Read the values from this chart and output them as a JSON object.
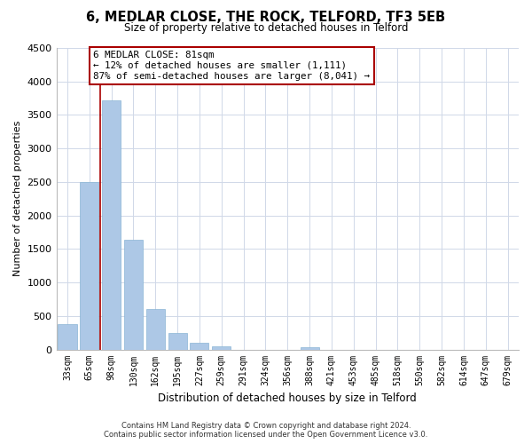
{
  "title": "6, MEDLAR CLOSE, THE ROCK, TELFORD, TF3 5EB",
  "subtitle": "Size of property relative to detached houses in Telford",
  "xlabel": "Distribution of detached houses by size in Telford",
  "ylabel": "Number of detached properties",
  "categories": [
    "33sqm",
    "65sqm",
    "98sqm",
    "130sqm",
    "162sqm",
    "195sqm",
    "227sqm",
    "259sqm",
    "291sqm",
    "324sqm",
    "356sqm",
    "388sqm",
    "421sqm",
    "453sqm",
    "485sqm",
    "518sqm",
    "550sqm",
    "582sqm",
    "614sqm",
    "647sqm",
    "679sqm"
  ],
  "values": [
    380,
    2500,
    3720,
    1640,
    600,
    240,
    105,
    50,
    0,
    0,
    0,
    40,
    0,
    0,
    0,
    0,
    0,
    0,
    0,
    0,
    0
  ],
  "bar_color": "#adc8e6",
  "red_line_x": 1.5,
  "annotation_title": "6 MEDLAR CLOSE: 81sqm",
  "annotation_line1": "← 12% of detached houses are smaller (1,111)",
  "annotation_line2": "87% of semi-detached houses are larger (8,041) →",
  "box_color": "#aa0000",
  "ylim": [
    0,
    4500
  ],
  "yticks": [
    0,
    500,
    1000,
    1500,
    2000,
    2500,
    3000,
    3500,
    4000,
    4500
  ],
  "footer1": "Contains HM Land Registry data © Crown copyright and database right 2024.",
  "footer2": "Contains public sector information licensed under the Open Government Licence v3.0.",
  "bg_color": "#ffffff",
  "grid_color": "#d0d8e8"
}
